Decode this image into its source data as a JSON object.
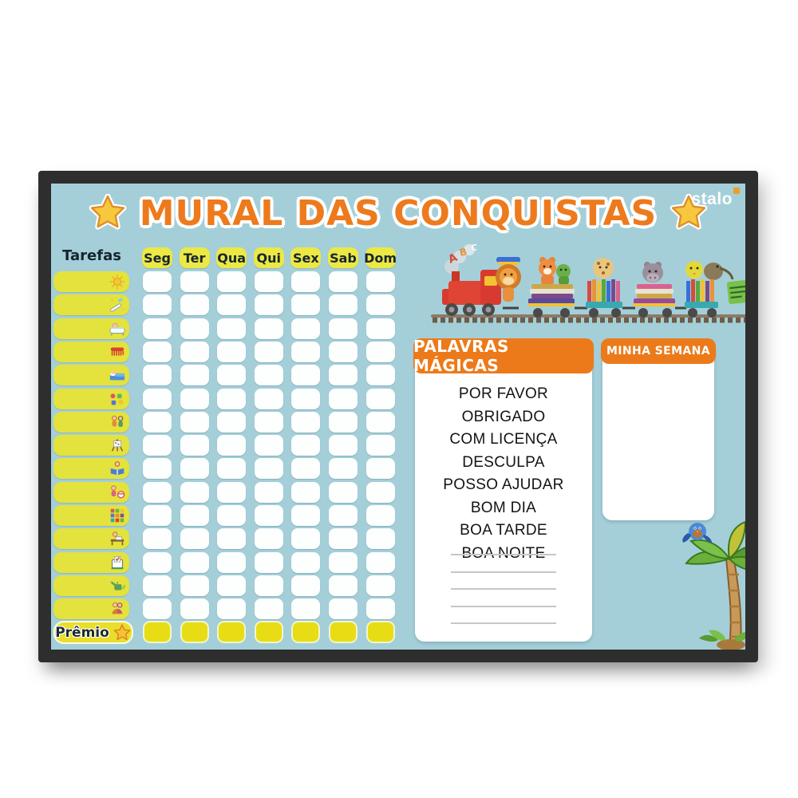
{
  "board": {
    "title": "MURAL DAS CONQUISTAS",
    "brand": "stalo",
    "colors": {
      "surface_blue": "#a4cfd9",
      "frame_dark": "#2e2e2e",
      "accent_orange": "#ec7a1a",
      "row_yellow": "#e4e23c",
      "tab_yellow": "#ece845",
      "prize_yellow": "#e8dd15",
      "star_yellow": "#f7c83e"
    },
    "tasks": {
      "header": "Tarefas",
      "prize_label": "Prêmio",
      "rows": [
        {
          "icon": "sun-icon"
        },
        {
          "icon": "toothbrush-icon"
        },
        {
          "icon": "bathtub-icon"
        },
        {
          "icon": "comb-icon"
        },
        {
          "icon": "sleeping-icon"
        },
        {
          "icon": "toys-icon"
        },
        {
          "icon": "friends-icon"
        },
        {
          "icon": "painting-icon"
        },
        {
          "icon": "reading-icon"
        },
        {
          "icon": "playing-icon"
        },
        {
          "icon": "blocks-icon"
        },
        {
          "icon": "homework-icon"
        },
        {
          "icon": "organizer-icon"
        },
        {
          "icon": "watering-icon"
        },
        {
          "icon": "hugging-icon"
        }
      ]
    },
    "week": {
      "days": [
        "Seg",
        "Ter",
        "Qua",
        "Qui",
        "Sex",
        "Sab",
        "Dom"
      ]
    },
    "magic_words": {
      "title": "PALAVRAS MÁGICAS",
      "words": [
        "POR FAVOR",
        "OBRIGADO",
        "COM LICENÇA",
        "DESCULPA",
        "POSSO AJUDAR",
        "BOM DIA",
        "BOA TARDE",
        "BOA NOITE"
      ],
      "blank_lines": 5
    },
    "my_week": {
      "title": "MINHA SEMANA"
    }
  }
}
